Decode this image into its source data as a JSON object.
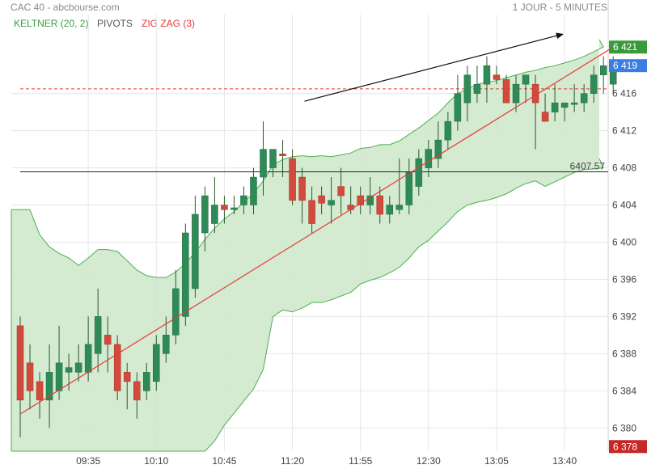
{
  "header": {
    "instrument": "CAC 40 - abcbourse.com",
    "period": "1 JOUR - 5 MINUTES"
  },
  "indicators": {
    "keltner": "KELTNER (20, 2)",
    "pivots": "PIVOTS",
    "zigzag": "ZIG ZAG (3)"
  },
  "colors": {
    "up": "#2e8b57",
    "down": "#d24a3c",
    "band_fill": "#cfe8cc",
    "band_line": "#4caf50",
    "zigzag": "#e53935",
    "badge_green": "#3a9a3a",
    "badge_blue": "#3b7de0",
    "badge_red": "#c62828"
  },
  "chart_data": {
    "type": "candlestick",
    "ylim": [
      6377.5,
      6424.5
    ],
    "yticks": [
      "6 380",
      "6 384",
      "6 388",
      "6 392",
      "6 396",
      "6 400",
      "6 404",
      "6 408",
      "6 412",
      "6 416"
    ],
    "ytick_values": [
      6380,
      6384,
      6388,
      6392,
      6396,
      6400,
      6404,
      6408,
      6412,
      6416
    ],
    "xticks": [
      "09:35",
      "10:10",
      "10:45",
      "11:20",
      "11:55",
      "12:30",
      "13:05",
      "13:40"
    ],
    "xtick_index": [
      7,
      14,
      21,
      28,
      35,
      42,
      49,
      56
    ],
    "ohlc": [
      [
        6391,
        6392,
        6379,
        6383
      ],
      [
        6387,
        6389,
        6382,
        6384
      ],
      [
        6385,
        6386,
        6381,
        6383
      ],
      [
        6383,
        6389,
        6380,
        6386
      ],
      [
        6384,
        6391,
        6383,
        6387
      ],
      [
        6386,
        6388,
        6384,
        6386.5
      ],
      [
        6386,
        6389,
        6385,
        6387
      ],
      [
        6386,
        6392,
        6385,
        6389
      ],
      [
        6388,
        6395,
        6386,
        6392
      ],
      [
        6390,
        6392,
        6386,
        6389
      ],
      [
        6389,
        6390,
        6383,
        6384
      ],
      [
        6386,
        6387,
        6382,
        6385
      ],
      [
        6385,
        6386,
        6381,
        6383
      ],
      [
        6384,
        6387,
        6383,
        6386
      ],
      [
        6385,
        6390,
        6384,
        6389
      ],
      [
        6388,
        6392,
        6387,
        6390
      ],
      [
        6390,
        6397,
        6389,
        6395
      ],
      [
        6392,
        6402,
        6391,
        6401
      ],
      [
        6395,
        6405,
        6394,
        6403
      ],
      [
        6401,
        6406,
        6399,
        6405
      ],
      [
        6402,
        6407,
        6401,
        6404
      ],
      [
        6404,
        6405,
        6402,
        6403.5
      ],
      [
        6403.5,
        6405,
        6403,
        6403.7
      ],
      [
        6404,
        6406,
        6403,
        6405
      ],
      [
        6404,
        6408,
        6403,
        6407
      ],
      [
        6407,
        6413,
        6405,
        6410
      ],
      [
        6408,
        6410,
        6407,
        6410
      ],
      [
        6409.5,
        6411,
        6407,
        6409.3
      ],
      [
        6409,
        6410,
        6404,
        6404.5
      ],
      [
        6407,
        6408,
        6402,
        6404.5
      ],
      [
        6404.5,
        6406,
        6401,
        6402
      ],
      [
        6405,
        6406,
        6403,
        6404.2
      ],
      [
        6404,
        6407,
        6402,
        6404.5
      ],
      [
        6406,
        6408,
        6403,
        6405
      ],
      [
        6404,
        6406,
        6403,
        6403.5
      ],
      [
        6405,
        6406,
        6403,
        6404
      ],
      [
        6404,
        6407,
        6403,
        6405
      ],
      [
        6405,
        6406,
        6402,
        6403
      ],
      [
        6403,
        6405,
        6402,
        6404
      ],
      [
        6403.5,
        6409,
        6403,
        6404
      ],
      [
        6404,
        6409,
        6403,
        6407.5
      ],
      [
        6406,
        6410,
        6405,
        6409
      ],
      [
        6408,
        6411,
        6407,
        6410
      ],
      [
        6409,
        6413,
        6408,
        6411
      ],
      [
        6411,
        6414,
        6410,
        6413
      ],
      [
        6413,
        6418,
        6412,
        6416
      ],
      [
        6415,
        6419,
        6413,
        6418
      ],
      [
        6416,
        6419,
        6415,
        6417
      ],
      [
        6417,
        6420,
        6415,
        6419
      ],
      [
        6418,
        6419,
        6417,
        6417.5
      ],
      [
        6417.5,
        6418,
        6415,
        6415
      ],
      [
        6415,
        6418,
        6414,
        6417
      ],
      [
        6417,
        6418,
        6415,
        6418
      ],
      [
        6417,
        6418,
        6410,
        6415
      ],
      [
        6414,
        6416,
        6413,
        6413
      ],
      [
        6414,
        6417,
        6413,
        6415
      ],
      [
        6414.5,
        6415,
        6413,
        6415
      ],
      [
        6415,
        6417,
        6414,
        6415
      ],
      [
        6415,
        6417,
        6414,
        6416
      ],
      [
        6416,
        6419,
        6415,
        6418
      ],
      [
        6418,
        6420,
        6416,
        6419
      ],
      [
        6417,
        6420,
        6416,
        6419.5
      ]
    ],
    "keltner_upper": [
      6403.5,
      6403.5,
      6400.8,
      6399.5,
      6398.8,
      6398.3,
      6397.5,
      6398.3,
      6399.2,
      6399.2,
      6399,
      6398,
      6397,
      6396.4,
      6396.2,
      6396.2,
      6396.8,
      6397.7,
      6398.9,
      6400.3,
      6401.5,
      6402.5,
      6403.3,
      6404.3,
      6405.3,
      6406.6,
      6408.3,
      6408.9,
      6409.2,
      6409.3,
      6409.2,
      6409.3,
      6409.2,
      6409.4,
      6409.6,
      6410.1,
      6410.2,
      6410.5,
      6410.5,
      6410.9,
      6411.6,
      6412.3,
      6413.1,
      6413.9,
      6415,
      6416,
      6416.5,
      6417,
      6417.2,
      6417.4,
      6417.7,
      6418,
      6418.3,
      6418.5,
      6418.8,
      6419,
      6419.3,
      6419.6,
      6420,
      6420.5,
      6421,
      6421.8
    ],
    "keltner_lower": [
      6371,
      6371,
      6371,
      6371,
      6371,
      6371,
      6371,
      6371,
      6371,
      6371,
      6371,
      6371,
      6371,
      6371,
      6371,
      6371,
      6371,
      6371,
      6373,
      6376,
      6378.6,
      6380.3,
      6381.6,
      6382.9,
      6384.2,
      6386.3,
      6392,
      6392.7,
      6392.5,
      6392.9,
      6393.5,
      6393.5,
      6393.8,
      6394.2,
      6394.6,
      6395.5,
      6395.9,
      6396.2,
      6396.7,
      6397.3,
      6398.3,
      6399.5,
      6400.2,
      6401.2,
      6402.2,
      6403.3,
      6404,
      6404.3,
      6404.5,
      6404.8,
      6405.2,
      6405.8,
      6406.3,
      6406.6,
      6406,
      6406.5,
      6407,
      6407.5,
      6407.8,
      6407.9,
      6408,
      6409
    ],
    "zigzag_line": [
      [
        0,
        6381.5
      ],
      [
        61,
        6421
      ]
    ],
    "trend_arrow": [
      [
        27,
        6415
      ],
      [
        54,
        6422.5
      ]
    ],
    "pivot_dashed": 6416.5,
    "pivot_solid": {
      "value": 6407.57,
      "label": "6407.57"
    },
    "last_badges": [
      {
        "label": "6 421",
        "value": 6421,
        "color": "#3a9a3a"
      },
      {
        "label": "6 419",
        "value": 6419,
        "color": "#3b7de0"
      },
      {
        "label": "6 378",
        "value": 6378,
        "color": "#c62828"
      }
    ]
  }
}
